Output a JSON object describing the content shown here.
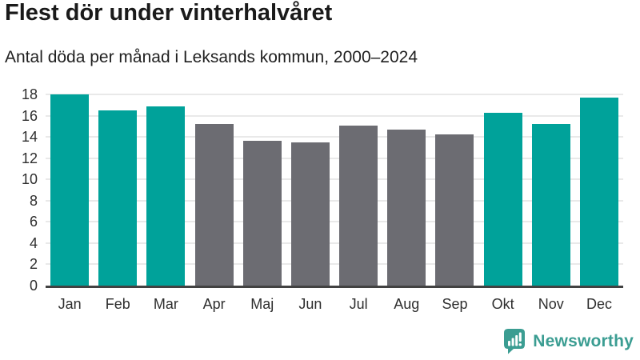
{
  "header": {
    "title": "Flest dör under vinterhalvåret",
    "subtitle": "Antal döda per månad i Leksands kommun, 2000–2024"
  },
  "chart_data": {
    "type": "bar",
    "title": "Flest dör under vinterhalvåret",
    "subtitle": "Antal döda per månad i Leksands kommun, 2000–2024",
    "categories": [
      "Jan",
      "Feb",
      "Mar",
      "Apr",
      "Maj",
      "Jun",
      "Jul",
      "Aug",
      "Sep",
      "Okt",
      "Nov",
      "Dec"
    ],
    "values": [
      18.0,
      16.5,
      16.9,
      15.2,
      13.6,
      13.5,
      15.1,
      14.7,
      14.2,
      16.3,
      15.2,
      17.7
    ],
    "bar_colors": [
      "#00a29a",
      "#00a29a",
      "#00a29a",
      "#6c6c72",
      "#6c6c72",
      "#6c6c72",
      "#6c6c72",
      "#6c6c72",
      "#6c6c72",
      "#00a29a",
      "#00a29a",
      "#00a29a"
    ],
    "highlight_color": "#00a29a",
    "muted_color": "#6c6c72",
    "xlabel": "",
    "ylabel": "",
    "ylim": [
      0,
      18
    ],
    "yticks": [
      0,
      2,
      4,
      6,
      8,
      10,
      12,
      14,
      16,
      18
    ],
    "grid": true,
    "legend": false
  },
  "footer": {
    "brand": "Newsworthy",
    "brand_color": "#3b9d92",
    "logo_icon": "bar-chart-speech-bubble-icon"
  }
}
